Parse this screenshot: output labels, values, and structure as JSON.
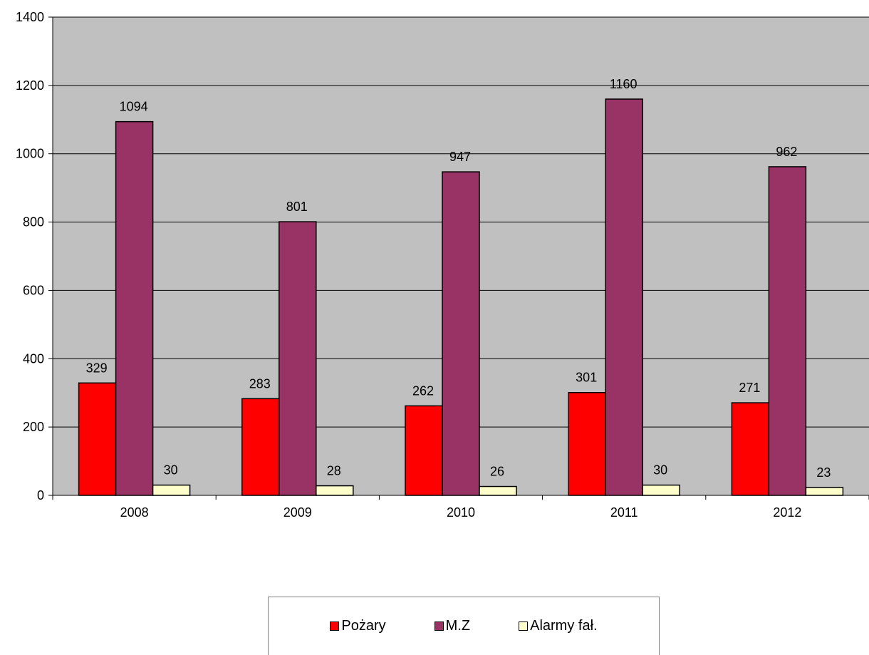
{
  "chart_data": {
    "type": "bar",
    "title": "",
    "xlabel": "",
    "ylabel": "",
    "categories": [
      "2008",
      "2009",
      "2010",
      "2011",
      "2012"
    ],
    "series": [
      {
        "name": "Pożary",
        "values": [
          329,
          283,
          262,
          301,
          271
        ],
        "color": "#ff0000"
      },
      {
        "name": "M.Z",
        "values": [
          1094,
          801,
          947,
          1160,
          962
        ],
        "color": "#993366"
      },
      {
        "name": "Alarmy fał.",
        "values": [
          30,
          28,
          26,
          30,
          23
        ],
        "color": "#ffffcc"
      }
    ],
    "ylim": [
      0,
      1400
    ],
    "yticks": [
      0,
      200,
      400,
      600,
      800,
      1000,
      1200,
      1400
    ],
    "grid": true,
    "plot_background": "#c0c0c0",
    "legend_position": "bottom",
    "data_labels": true
  }
}
